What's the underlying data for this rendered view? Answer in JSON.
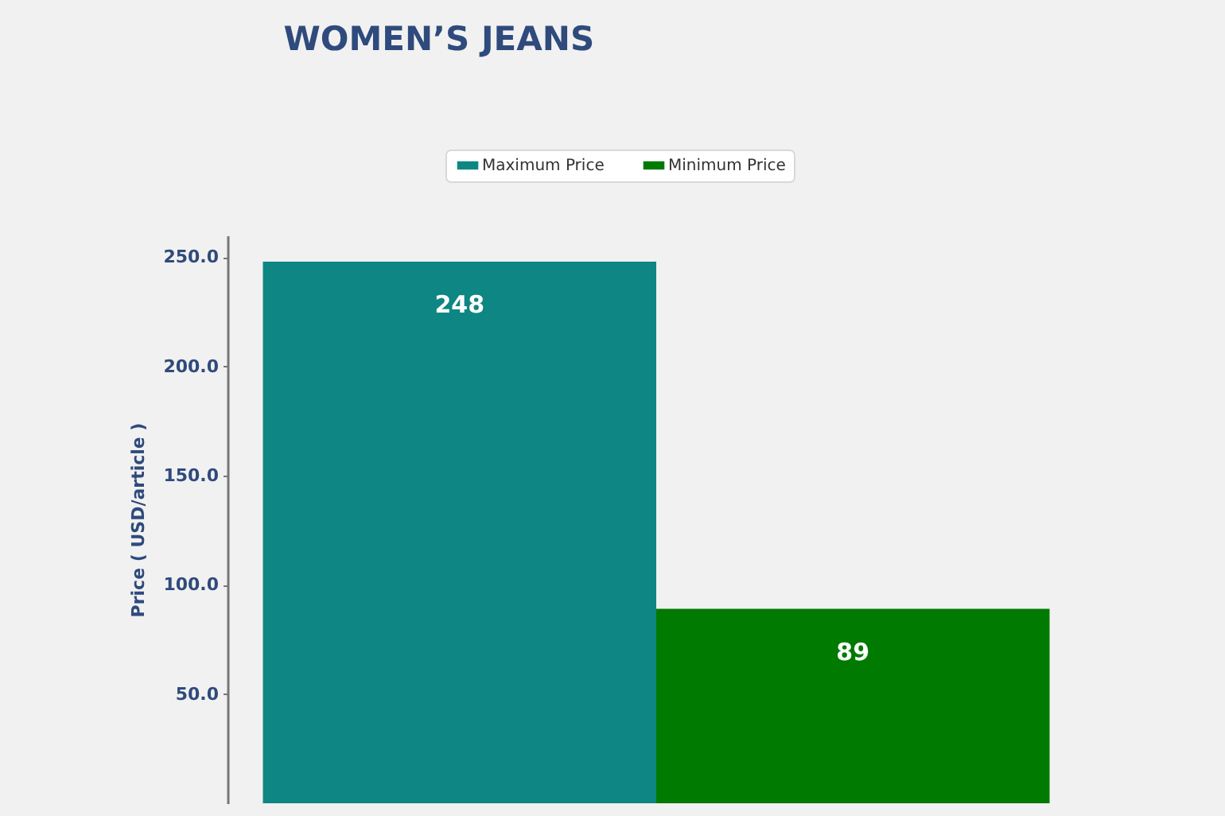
{
  "chart_data": {
    "type": "bar",
    "title": "WOMEN’S JEANS",
    "ylabel": "Price ( USD/article )",
    "categories": [
      null
    ],
    "series": [
      {
        "name": "Maximum Price",
        "color": "#0e8683",
        "values": [
          248
        ]
      },
      {
        "name": "Minimum Price",
        "color": "#007a00",
        "values": [
          89
        ]
      }
    ],
    "ylim": [
      0,
      260
    ],
    "yticks": [
      {
        "value": 50,
        "label": "50.0"
      },
      {
        "value": 100,
        "label": "100.0"
      },
      {
        "value": 150,
        "label": "150.0"
      },
      {
        "value": 200,
        "label": "200.0"
      },
      {
        "value": 250,
        "label": "250.0"
      }
    ],
    "legend": "top",
    "data_labels": true
  }
}
